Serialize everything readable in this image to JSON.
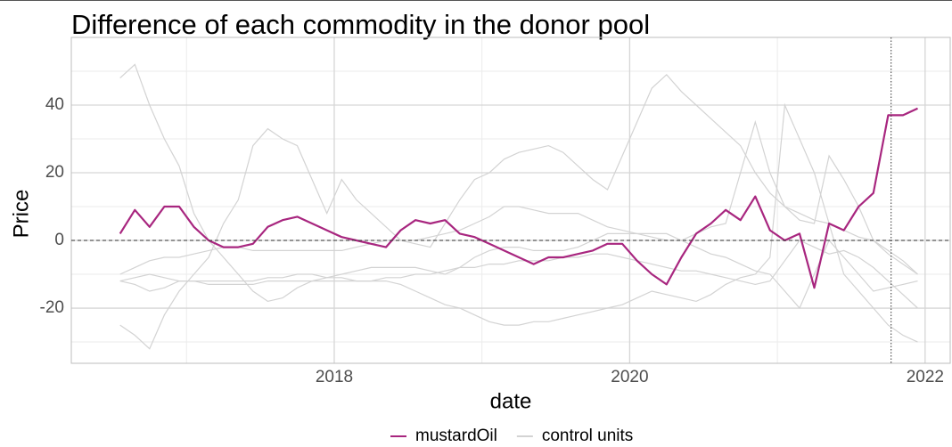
{
  "chart_data": {
    "type": "line",
    "title": "Difference of each commodity in the donor pool",
    "x_label": "date",
    "y_label": "Price",
    "x": [
      2016.55,
      2016.65,
      2016.75,
      2016.85,
      2016.95,
      2017.05,
      2017.15,
      2017.25,
      2017.35,
      2017.45,
      2017.55,
      2017.65,
      2017.75,
      2017.85,
      2017.95,
      2018.05,
      2018.15,
      2018.25,
      2018.35,
      2018.45,
      2018.55,
      2018.65,
      2018.75,
      2018.85,
      2018.95,
      2019.05,
      2019.15,
      2019.25,
      2019.35,
      2019.45,
      2019.55,
      2019.65,
      2019.75,
      2019.85,
      2019.95,
      2020.05,
      2020.15,
      2020.25,
      2020.35,
      2020.45,
      2020.55,
      2020.65,
      2020.75,
      2020.85,
      2020.95,
      2021.05,
      2021.15,
      2021.25,
      2021.35,
      2021.45,
      2021.55,
      2021.65,
      2021.75,
      2021.85,
      2021.95
    ],
    "series": [
      {
        "name": "mustardOil",
        "color": "#a8267f",
        "values": [
          2,
          9,
          4,
          10,
          10,
          4,
          0,
          -2,
          -2,
          -1,
          4,
          6,
          7,
          5,
          3,
          1,
          0,
          -1,
          -2,
          3,
          6,
          5,
          6,
          2,
          1,
          -1,
          -3,
          -5,
          -7,
          -5,
          -5,
          -4,
          -3,
          -1,
          -1,
          -6,
          -10,
          -13,
          -5,
          2,
          5,
          9,
          6,
          13,
          3,
          0,
          2,
          -14,
          5,
          3,
          10,
          14,
          37,
          37,
          39
        ]
      },
      {
        "name": "control units",
        "color": "#d3d3d3",
        "lines": [
          [
            48,
            52,
            40,
            30,
            22,
            8,
            0,
            -5,
            -10,
            -15,
            -18,
            -17,
            -14,
            -12,
            -12,
            -12,
            -12,
            -12,
            -11,
            -11,
            -10,
            -10,
            -9,
            -8,
            -8,
            -7,
            -7,
            -6,
            -6,
            -6,
            -5,
            -5,
            -4,
            -4,
            -5,
            -6,
            -7,
            -8,
            -9,
            -9,
            -10,
            -11,
            -12,
            -13,
            -12,
            -6,
            0,
            -2,
            -4,
            -3,
            -5,
            -8,
            -12,
            -16,
            -20
          ],
          [
            -25,
            -28,
            -32,
            -22,
            -15,
            -10,
            -5,
            5,
            12,
            28,
            33,
            30,
            28,
            18,
            8,
            18,
            12,
            8,
            4,
            0,
            -1,
            -2,
            5,
            12,
            18,
            20,
            24,
            26,
            27,
            28,
            26,
            22,
            18,
            15,
            25,
            35,
            45,
            49,
            44,
            40,
            36,
            32,
            28,
            20,
            14,
            10,
            6,
            5,
            25,
            18,
            10,
            0,
            -3,
            -6,
            -10
          ],
          [
            -12,
            -11,
            -10,
            -11,
            -12,
            -12,
            -12,
            -12,
            -12,
            -12,
            -11,
            -11,
            -10,
            -10,
            -11,
            -11,
            -12,
            -12,
            -12,
            -13,
            -15,
            -17,
            -19,
            -20,
            -22,
            -24,
            -25,
            -25,
            -24,
            -24,
            -23,
            -22,
            -21,
            -20,
            -19,
            -17,
            -15,
            -16,
            -17,
            -18,
            -16,
            -13,
            -11,
            -10,
            -5,
            40,
            30,
            20,
            5,
            -10,
            -15,
            -20,
            -25,
            -28,
            -30
          ],
          [
            -12,
            -13,
            -15,
            -14,
            -12,
            -12,
            -13,
            -13,
            -13,
            -13,
            -12,
            -12,
            -12,
            -12,
            -11,
            -10,
            -9,
            -8,
            -8,
            -8,
            -8,
            -9,
            -10,
            -8,
            -5,
            -3,
            -2,
            -2,
            -3,
            -3,
            -3,
            -2,
            0,
            2,
            2,
            2,
            2,
            2,
            0,
            -2,
            -4,
            -5,
            -7,
            -9,
            -10,
            -15,
            -20,
            -10,
            0,
            -5,
            -10,
            -15,
            -14,
            -13,
            -12
          ],
          [
            -10,
            -8,
            -6,
            -5,
            -5,
            -4,
            -3,
            -2,
            -2,
            -3,
            -3,
            -3,
            -3,
            -3,
            -3,
            -3,
            -2,
            -1,
            0,
            0,
            0,
            1,
            2,
            3,
            5,
            7,
            10,
            10,
            9,
            8,
            8,
            8,
            6,
            4,
            3,
            2,
            1,
            0,
            0,
            2,
            4,
            5,
            20,
            35,
            20,
            10,
            8,
            6,
            5,
            3,
            1,
            0,
            -4,
            -7,
            -10
          ]
        ]
      }
    ],
    "xlim": [
      2016.22,
      2022.17
    ],
    "xticks": [
      2018,
      2020,
      2022
    ],
    "xminor": [
      2017,
      2019,
      2021
    ],
    "ylim": [
      -36.3,
      60
    ],
    "yticks": [
      -20,
      0,
      20,
      40
    ],
    "yminor": [
      -30,
      -10,
      10,
      30,
      50
    ],
    "grid": true,
    "hlines": [
      0
    ],
    "vlines": [
      2021.77
    ],
    "legend": "bottom"
  }
}
